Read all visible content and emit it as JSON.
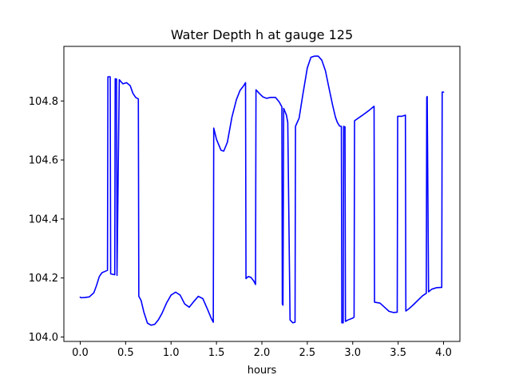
{
  "chart_data": {
    "type": "line",
    "title": "Water Depth h at gauge 125",
    "xlabel": "hours",
    "ylabel": "",
    "xlim": [
      -0.18,
      4.18
    ],
    "ylim": [
      103.985,
      104.985
    ],
    "xticks": [
      0.0,
      0.5,
      1.0,
      1.5,
      2.0,
      2.5,
      3.0,
      3.5,
      4.0
    ],
    "xtick_labels": [
      "0.0",
      "0.5",
      "1.0",
      "1.5",
      "2.0",
      "2.5",
      "3.0",
      "3.5",
      "4.0"
    ],
    "yticks": [
      104.0,
      104.2,
      104.4,
      104.6,
      104.8
    ],
    "ytick_labels": [
      "104.0",
      "104.2",
      "104.4",
      "104.6",
      "104.8"
    ],
    "grid": false,
    "legend": false,
    "series": [
      {
        "color": "#0000ff",
        "x": [
          0.0,
          0.01,
          0.05,
          0.1,
          0.15,
          0.18,
          0.21,
          0.24,
          0.27,
          0.3,
          0.305,
          0.33,
          0.335,
          0.38,
          0.385,
          0.4,
          0.405,
          0.43,
          0.47,
          0.51,
          0.55,
          0.58,
          0.61,
          0.64,
          0.645,
          0.67,
          0.7,
          0.74,
          0.78,
          0.82,
          0.86,
          0.9,
          0.95,
          1.0,
          1.05,
          1.1,
          1.15,
          1.2,
          1.25,
          1.3,
          1.35,
          1.4,
          1.44,
          1.465,
          1.47,
          1.5,
          1.55,
          1.58,
          1.62,
          1.67,
          1.72,
          1.76,
          1.8,
          1.82,
          1.825,
          1.85,
          1.88,
          1.91,
          1.93,
          1.935,
          1.97,
          2.01,
          2.05,
          2.1,
          2.15,
          2.19,
          2.22,
          2.225,
          2.232,
          2.24,
          2.27,
          2.285,
          2.31,
          2.34,
          2.365,
          2.37,
          2.41,
          2.45,
          2.5,
          2.54,
          2.58,
          2.62,
          2.66,
          2.7,
          2.74,
          2.78,
          2.81,
          2.83,
          2.855,
          2.875,
          2.88,
          2.895,
          2.9,
          2.915,
          2.92,
          2.95,
          3.0,
          3.015,
          3.02,
          3.1,
          3.18,
          3.235,
          3.24,
          3.3,
          3.35,
          3.4,
          3.45,
          3.49,
          3.495,
          3.54,
          3.58,
          3.585,
          3.62,
          3.67,
          3.72,
          3.77,
          3.81,
          3.815,
          3.82,
          3.835,
          3.87,
          3.92,
          3.98,
          3.985,
          3.99,
          4.0
        ],
        "y": [
          104.135,
          104.133,
          104.134,
          104.136,
          104.15,
          104.175,
          104.205,
          104.218,
          104.222,
          104.226,
          104.882,
          104.882,
          104.214,
          104.211,
          104.875,
          104.874,
          104.209,
          104.872,
          104.858,
          104.862,
          104.852,
          104.826,
          104.812,
          104.807,
          104.138,
          104.124,
          104.085,
          104.047,
          104.04,
          104.043,
          104.058,
          104.08,
          104.115,
          104.142,
          104.152,
          104.142,
          104.112,
          104.101,
          104.12,
          104.138,
          104.13,
          104.095,
          104.065,
          104.05,
          104.708,
          104.67,
          104.633,
          104.63,
          104.66,
          104.745,
          104.805,
          104.836,
          104.852,
          104.862,
          104.198,
          104.205,
          104.202,
          104.19,
          104.178,
          104.838,
          104.826,
          104.814,
          104.809,
          104.812,
          104.812,
          104.797,
          104.78,
          104.112,
          104.108,
          104.775,
          104.752,
          104.727,
          104.058,
          104.048,
          104.05,
          104.714,
          104.742,
          104.82,
          104.912,
          104.948,
          104.952,
          104.952,
          104.938,
          104.902,
          104.842,
          104.784,
          104.745,
          104.728,
          104.715,
          104.714,
          104.048,
          104.048,
          104.714,
          104.712,
          104.053,
          104.058,
          104.064,
          104.067,
          104.733,
          104.75,
          104.768,
          104.782,
          104.118,
          104.115,
          104.101,
          104.087,
          104.083,
          104.084,
          104.748,
          104.748,
          104.752,
          104.088,
          104.096,
          104.11,
          104.125,
          104.14,
          104.148,
          104.812,
          104.815,
          104.153,
          104.162,
          104.167,
          104.168,
          104.83,
          104.83,
          104.83
        ]
      }
    ]
  }
}
